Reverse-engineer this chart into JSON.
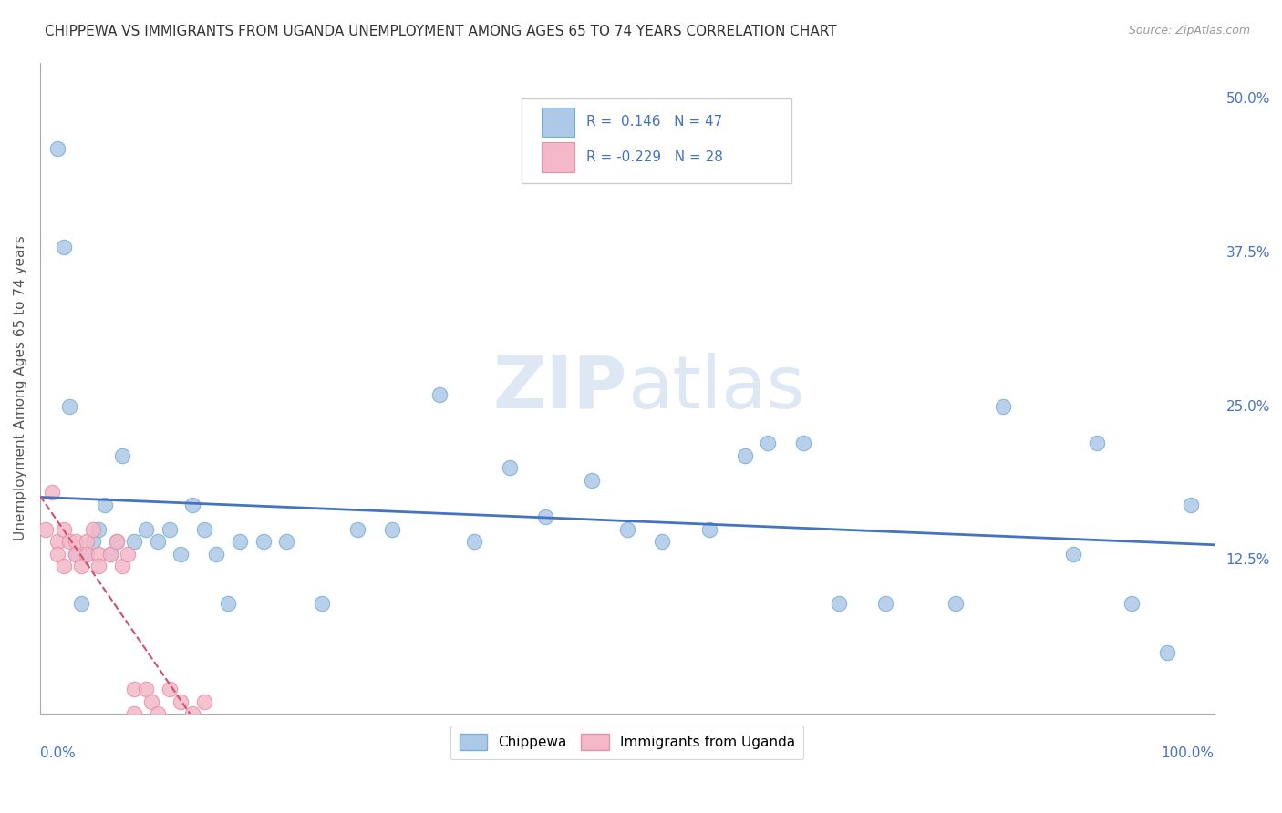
{
  "title": "CHIPPEWA VS IMMIGRANTS FROM UGANDA UNEMPLOYMENT AMONG AGES 65 TO 74 YEARS CORRELATION CHART",
  "source": "Source: ZipAtlas.com",
  "ylabel": "Unemployment Among Ages 65 to 74 years",
  "legend1_label": "Chippewa",
  "legend2_label": "Immigrants from Uganda",
  "R1": 0.146,
  "N1": 47,
  "R2": -0.229,
  "N2": 28,
  "chippewa_color": "#adc8e8",
  "chippewa_edge": "#7aafd4",
  "uganda_color": "#f4b8c8",
  "uganda_edge": "#e890a8",
  "chippewa_line_color": "#4472c4",
  "uganda_line_color": "#d05070",
  "background_color": "#ffffff",
  "grid_color": "#cccccc",
  "xlim": [
    0,
    1.0
  ],
  "ylim": [
    0,
    0.53
  ],
  "chippewa_x": [
    0.015,
    0.02,
    0.025,
    0.03,
    0.035,
    0.04,
    0.045,
    0.05,
    0.055,
    0.06,
    0.065,
    0.07,
    0.08,
    0.09,
    0.1,
    0.11,
    0.12,
    0.13,
    0.14,
    0.15,
    0.16,
    0.17,
    0.19,
    0.21,
    0.24,
    0.27,
    0.3,
    0.34,
    0.37,
    0.4,
    0.43,
    0.47,
    0.5,
    0.53,
    0.57,
    0.6,
    0.62,
    0.65,
    0.68,
    0.72,
    0.78,
    0.82,
    0.88,
    0.9,
    0.93,
    0.96,
    0.98
  ],
  "chippewa_y": [
    0.46,
    0.38,
    0.25,
    0.13,
    0.09,
    0.13,
    0.14,
    0.15,
    0.17,
    0.13,
    0.14,
    0.21,
    0.14,
    0.15,
    0.14,
    0.15,
    0.13,
    0.17,
    0.15,
    0.13,
    0.09,
    0.14,
    0.14,
    0.14,
    0.09,
    0.15,
    0.15,
    0.26,
    0.14,
    0.2,
    0.16,
    0.19,
    0.15,
    0.14,
    0.15,
    0.21,
    0.22,
    0.22,
    0.09,
    0.09,
    0.09,
    0.25,
    0.13,
    0.22,
    0.09,
    0.05,
    0.17
  ],
  "uganda_x": [
    0.005,
    0.01,
    0.015,
    0.015,
    0.02,
    0.02,
    0.025,
    0.03,
    0.03,
    0.035,
    0.04,
    0.04,
    0.045,
    0.05,
    0.05,
    0.06,
    0.065,
    0.07,
    0.075,
    0.08,
    0.08,
    0.09,
    0.095,
    0.1,
    0.11,
    0.12,
    0.13,
    0.14
  ],
  "uganda_y": [
    0.15,
    0.18,
    0.14,
    0.13,
    0.15,
    0.12,
    0.14,
    0.14,
    0.13,
    0.12,
    0.14,
    0.13,
    0.15,
    0.13,
    0.12,
    0.13,
    0.14,
    0.12,
    0.13,
    0.02,
    0.0,
    0.02,
    0.01,
    0.0,
    0.02,
    0.01,
    0.0,
    0.01
  ]
}
